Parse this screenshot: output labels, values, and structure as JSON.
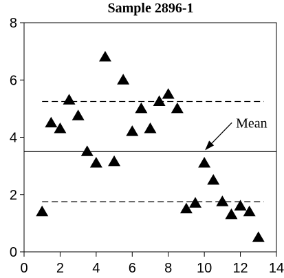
{
  "chart_data": {
    "type": "scatter",
    "title": "Sample 2896-1",
    "xlabel": "",
    "ylabel": "",
    "xlim": [
      0,
      14
    ],
    "ylim": [
      0,
      8
    ],
    "x_ticks": [
      0,
      2,
      4,
      6,
      8,
      10,
      12,
      14
    ],
    "y_ticks": [
      0,
      2,
      4,
      6,
      8
    ],
    "x_tick_labels": [
      "0",
      "2",
      "4",
      "6",
      "8",
      "10",
      "12",
      "14"
    ],
    "y_tick_labels": [
      "0",
      "2",
      "4",
      "6",
      "8"
    ],
    "grid": false,
    "marker": "filled-triangle",
    "series": [
      {
        "points": [
          [
            1.0,
            1.4
          ],
          [
            1.5,
            4.5
          ],
          [
            2.0,
            4.3
          ],
          [
            2.5,
            5.3
          ],
          [
            3.0,
            4.75
          ],
          [
            3.5,
            3.5
          ],
          [
            4.0,
            3.1
          ],
          [
            4.5,
            6.8
          ],
          [
            5.0,
            3.15
          ],
          [
            5.5,
            6.0
          ],
          [
            6.0,
            4.2
          ],
          [
            6.5,
            5.0
          ],
          [
            7.0,
            4.3
          ],
          [
            7.5,
            5.25
          ],
          [
            8.0,
            5.5
          ],
          [
            8.5,
            5.0
          ],
          [
            9.0,
            1.5
          ],
          [
            9.5,
            1.7
          ],
          [
            10.0,
            3.1
          ],
          [
            10.5,
            2.5
          ],
          [
            11.0,
            1.75
          ],
          [
            11.5,
            1.3
          ],
          [
            12.0,
            1.6
          ],
          [
            12.5,
            1.4
          ],
          [
            13.0,
            0.5
          ]
        ]
      }
    ],
    "reference_lines": [
      {
        "kind": "mean",
        "y": 3.5,
        "style": "solid"
      },
      {
        "kind": "upper",
        "y": 5.25,
        "style": "dashed"
      },
      {
        "kind": "lower",
        "y": 1.75,
        "style": "dashed"
      }
    ],
    "annotations": [
      {
        "text": "Mean",
        "arrow_to": [
          10.0,
          3.5
        ]
      }
    ]
  }
}
